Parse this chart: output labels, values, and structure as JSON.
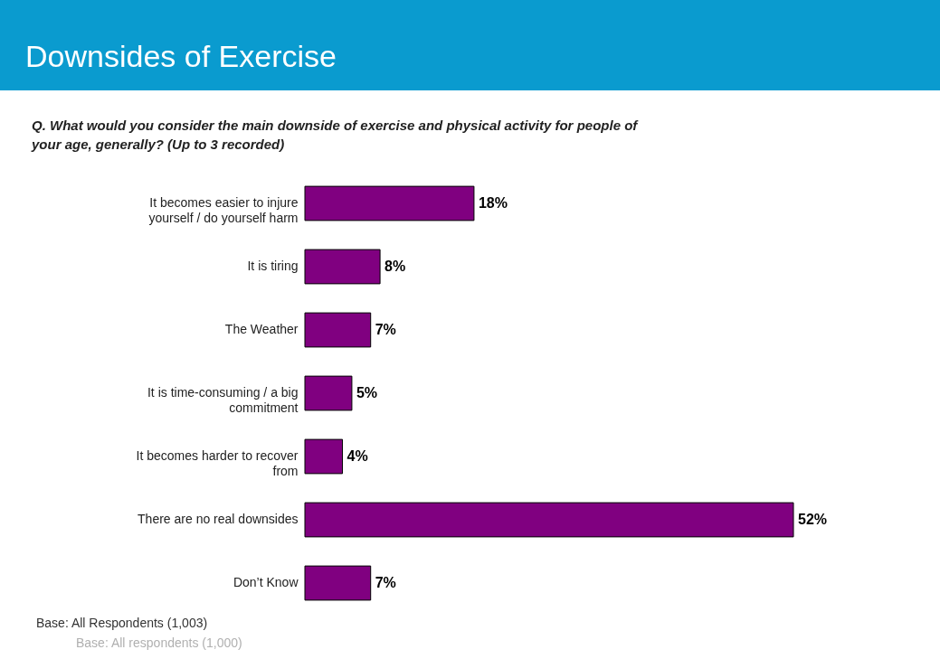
{
  "chart_data": {
    "type": "bar",
    "orientation": "horizontal",
    "title": "Downsides of Exercise",
    "subtitle": "Q. What would you consider the main downside of exercise and physical activity for people of your age, generally? (Up to 3 recorded)",
    "categories": [
      "It becomes easier to injure yourself / do yourself harm",
      "It is tiring",
      "The Weather",
      "It is time-consuming / a big commitment",
      "It becomes harder to recover from",
      "There are no real downsides",
      "Don’t Know"
    ],
    "values": [
      18,
      8,
      7,
      5,
      4,
      52,
      7
    ],
    "value_labels": [
      "18%",
      "8%",
      "7%",
      "5%",
      "4%",
      "52%",
      "7%"
    ],
    "color": "#800080",
    "annotations": [
      "Base: All Respondents (1,003)",
      "Base: All respondents (1,000)"
    ]
  }
}
